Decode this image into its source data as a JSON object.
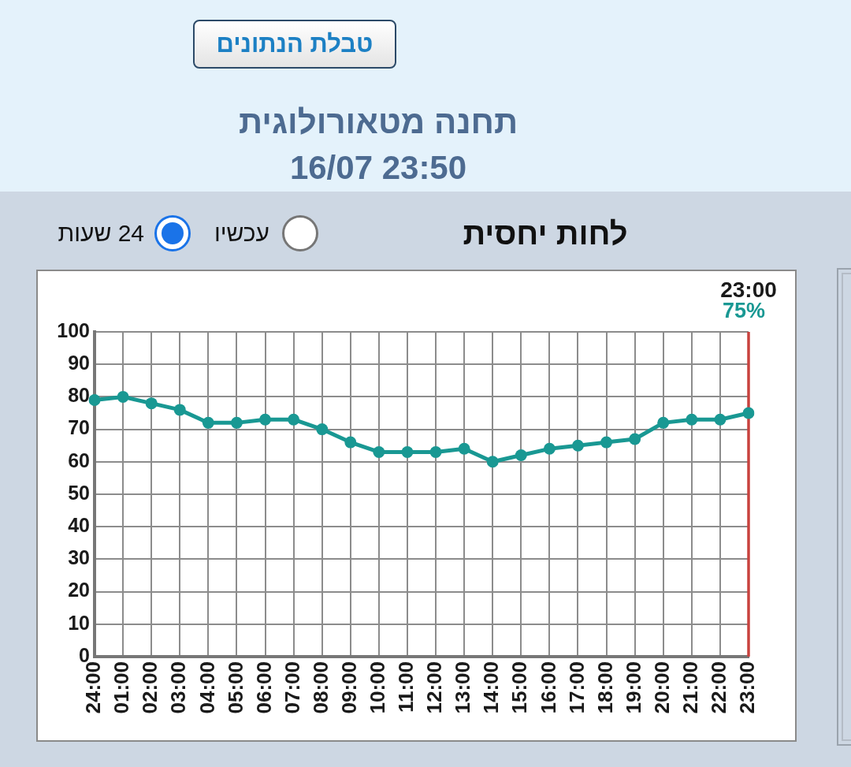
{
  "chart_data": {
    "type": "line",
    "title": "לחות יחסית",
    "categories": [
      "24:00",
      "01:00",
      "02:00",
      "03:00",
      "04:00",
      "05:00",
      "06:00",
      "07:00",
      "08:00",
      "09:00",
      "10:00",
      "11:00",
      "12:00",
      "13:00",
      "14:00",
      "15:00",
      "16:00",
      "17:00",
      "18:00",
      "19:00",
      "20:00",
      "21:00",
      "22:00",
      "23:00"
    ],
    "series": [
      {
        "color": "#199893",
        "values": [
          79,
          80,
          78,
          76,
          72,
          72,
          73,
          73,
          70,
          66,
          63,
          63,
          63,
          64,
          60,
          62,
          64,
          65,
          66,
          67,
          72,
          73,
          73,
          75
        ]
      }
    ],
    "ylim": [
      0,
      100
    ],
    "yticks": [
      0,
      10,
      20,
      30,
      40,
      50,
      60,
      70,
      80,
      90,
      100
    ],
    "grid": true,
    "marker": "circle",
    "line_style": "solid",
    "ref_lines": [
      {
        "axis": "x",
        "value": "23:00",
        "label": "23:00",
        "color": "#c8423e"
      }
    ],
    "annotations": [
      "טבלת הנתונים",
      "תחנה מטאורולוגית",
      "16/07 23:50",
      "עכשיו",
      "24 שעות",
      "75%"
    ]
  }
}
